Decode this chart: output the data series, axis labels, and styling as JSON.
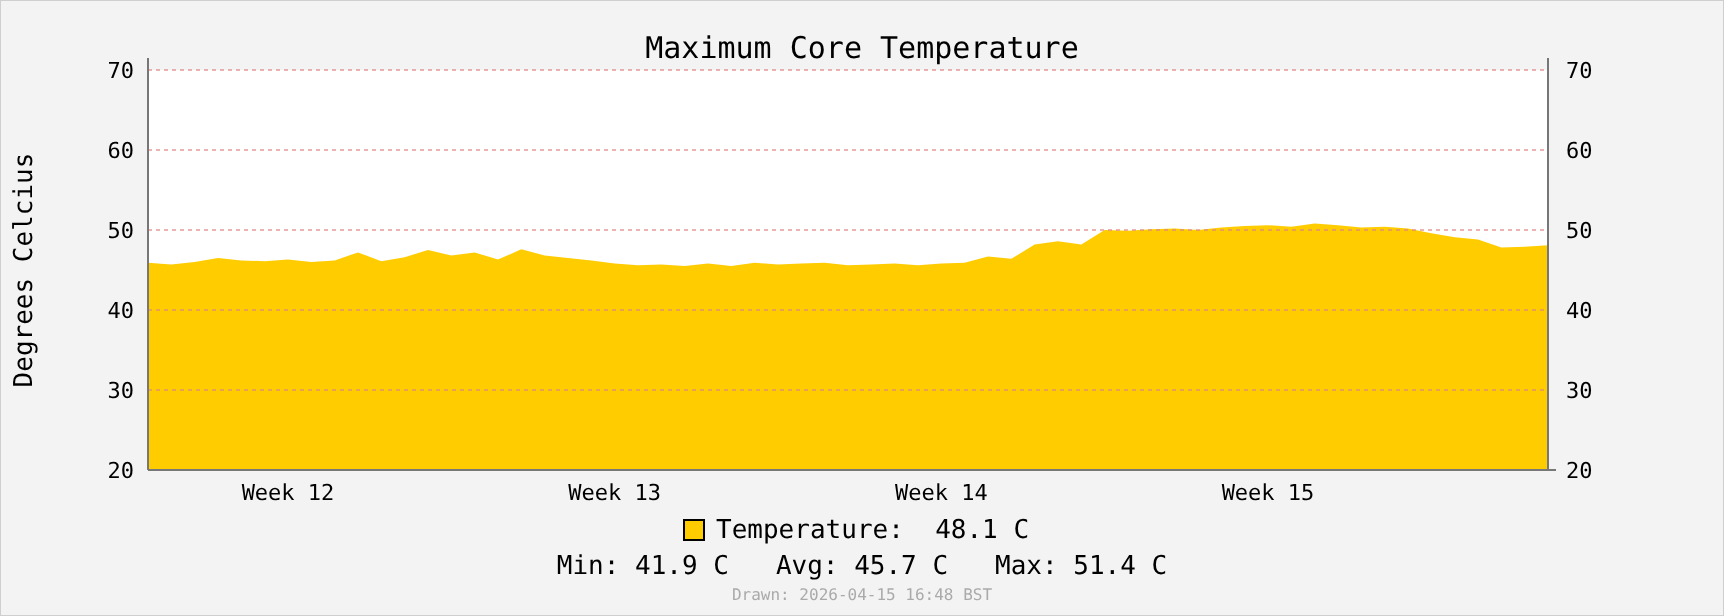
{
  "chart_data": {
    "type": "area",
    "title": "Maximum Core Temperature",
    "ylabel": "Degrees Celcius",
    "categories": [
      null,
      null,
      null,
      null,
      null,
      null,
      "Week 12",
      null,
      null,
      null,
      null,
      null,
      null,
      null,
      null,
      null,
      null,
      null,
      null,
      null,
      "Week 13",
      null,
      null,
      null,
      null,
      null,
      null,
      null,
      null,
      null,
      null,
      null,
      null,
      null,
      "Week 14",
      null,
      null,
      null,
      null,
      null,
      null,
      null,
      null,
      null,
      null,
      null,
      null,
      null,
      "Week 15",
      null,
      null,
      null,
      null,
      null,
      null,
      null,
      null,
      null,
      null,
      null,
      null
    ],
    "series": [
      {
        "name": "Temperature:  48.1 C",
        "color": "#ffcc00",
        "values": [
          45.9,
          45.7,
          46.0,
          46.5,
          46.2,
          46.1,
          46.3,
          46.0,
          46.2,
          47.2,
          46.1,
          46.6,
          47.5,
          46.8,
          47.2,
          46.3,
          47.6,
          46.8,
          46.5,
          46.2,
          45.8,
          45.6,
          45.7,
          45.5,
          45.8,
          45.5,
          45.9,
          45.7,
          45.8,
          45.9,
          45.6,
          45.7,
          45.8,
          45.6,
          45.8,
          45.9,
          46.7,
          46.4,
          48.2,
          48.6,
          48.2,
          50.0,
          49.9,
          50.1,
          50.2,
          50.0,
          50.3,
          50.5,
          50.6,
          50.4,
          50.8,
          50.6,
          50.3,
          50.4,
          50.2,
          49.6,
          49.1,
          48.8,
          47.8,
          47.9,
          48.1
        ]
      }
    ],
    "ylim": [
      20,
      70
    ],
    "yticks": [
      20,
      30,
      40,
      50,
      60,
      70
    ],
    "y2lim": [
      20,
      70
    ],
    "y2ticks": [
      20,
      30,
      40,
      50,
      60,
      70
    ],
    "grid": "y",
    "legend": "bottom",
    "annotations": [
      "Min: 41.9 C   Avg: 45.7 C   Max: 51.4 C",
      "Drawn: 2026-04-15 16:48 BST"
    ]
  }
}
